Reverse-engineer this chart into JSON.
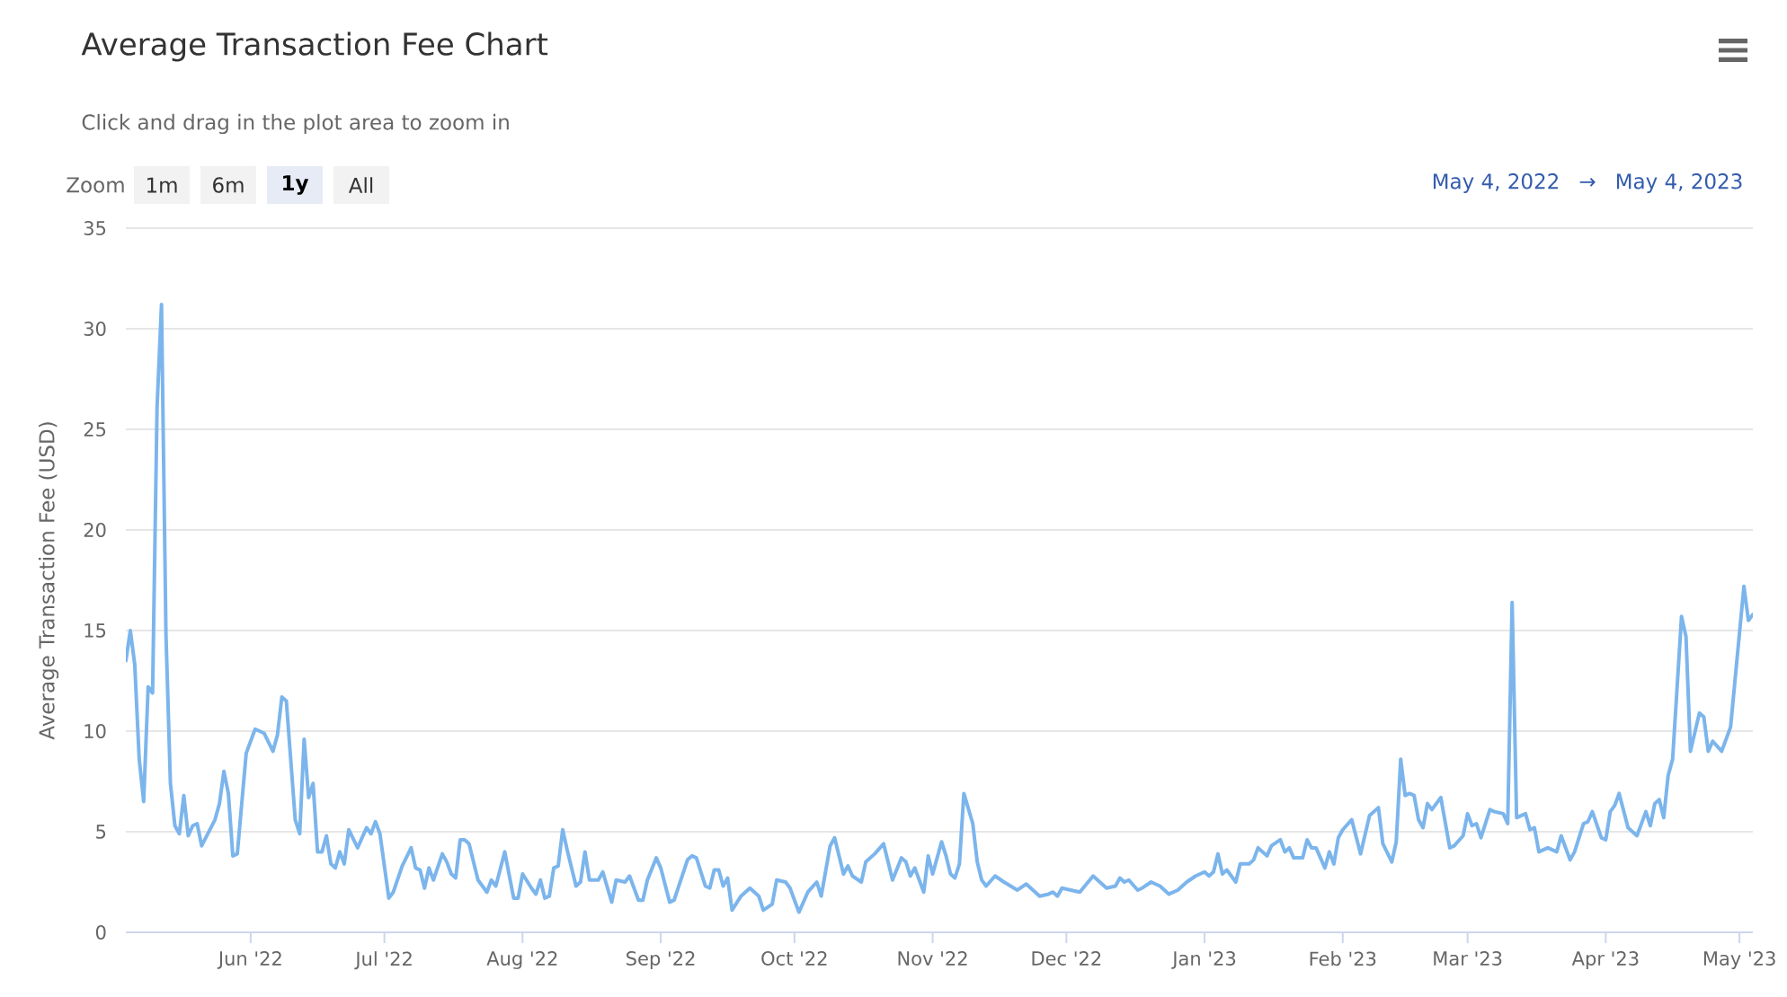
{
  "chart_data": {
    "type": "line",
    "title": "Average Transaction Fee Chart",
    "ylabel": "Average Transaction Fee (USD)",
    "annotations": [
      "Click and drag in the plot area to zoom in",
      "Zoom",
      "1m",
      "6m",
      "1y",
      "All",
      "May 4, 2022",
      "→",
      "May 4, 2023"
    ],
    "x": [
      "2022-05-04",
      "2022-05-05",
      "2022-05-06",
      "2022-05-07",
      "2022-05-08",
      "2022-05-09",
      "2022-05-10",
      "2022-05-11",
      "2022-05-12",
      "2022-05-13",
      "2022-05-14",
      "2022-05-15",
      "2022-05-16",
      "2022-05-17",
      "2022-05-18",
      "2022-05-19",
      "2022-05-20",
      "2022-05-21",
      "2022-05-24",
      "2022-05-25",
      "2022-05-26",
      "2022-05-27",
      "2022-05-28",
      "2022-05-29",
      "2022-05-31",
      "2022-06-02",
      "2022-06-04",
      "2022-06-06",
      "2022-06-07",
      "2022-06-08",
      "2022-06-09",
      "2022-06-11",
      "2022-06-12",
      "2022-06-13",
      "2022-06-14",
      "2022-06-15",
      "2022-06-16",
      "2022-06-17",
      "2022-06-18",
      "2022-06-19",
      "2022-06-20",
      "2022-06-21",
      "2022-06-22",
      "2022-06-23",
      "2022-06-25",
      "2022-06-27",
      "2022-06-28",
      "2022-06-29",
      "2022-06-30",
      "2022-07-02",
      "2022-07-03",
      "2022-07-05",
      "2022-07-07",
      "2022-07-08",
      "2022-07-09",
      "2022-07-10",
      "2022-07-11",
      "2022-07-12",
      "2022-07-14",
      "2022-07-15",
      "2022-07-16",
      "2022-07-17",
      "2022-07-18",
      "2022-07-19",
      "2022-07-20",
      "2022-07-22",
      "2022-07-24",
      "2022-07-25",
      "2022-07-26",
      "2022-07-28",
      "2022-07-30",
      "2022-07-31",
      "2022-08-01",
      "2022-08-03",
      "2022-08-04",
      "2022-08-05",
      "2022-08-06",
      "2022-08-07",
      "2022-08-08",
      "2022-08-09",
      "2022-08-10",
      "2022-08-11",
      "2022-08-13",
      "2022-08-14",
      "2022-08-15",
      "2022-08-16",
      "2022-08-18",
      "2022-08-19",
      "2022-08-21",
      "2022-08-22",
      "2022-08-24",
      "2022-08-25",
      "2022-08-27",
      "2022-08-28",
      "2022-08-29",
      "2022-08-31",
      "2022-09-01",
      "2022-09-03",
      "2022-09-04",
      "2022-09-07",
      "2022-09-08",
      "2022-09-09",
      "2022-09-11",
      "2022-09-12",
      "2022-09-13",
      "2022-09-14",
      "2022-09-15",
      "2022-09-16",
      "2022-09-17",
      "2022-09-19",
      "2022-09-21",
      "2022-09-23",
      "2022-09-24",
      "2022-09-26",
      "2022-09-27",
      "2022-09-29",
      "2022-09-30",
      "2022-10-02",
      "2022-10-04",
      "2022-10-06",
      "2022-10-07",
      "2022-10-09",
      "2022-10-10",
      "2022-10-12",
      "2022-10-13",
      "2022-10-14",
      "2022-10-16",
      "2022-10-17",
      "2022-10-19",
      "2022-10-21",
      "2022-10-23",
      "2022-10-25",
      "2022-10-26",
      "2022-10-27",
      "2022-10-28",
      "2022-10-30",
      "2022-10-31",
      "2022-11-01",
      "2022-11-03",
      "2022-11-04",
      "2022-11-05",
      "2022-11-06",
      "2022-11-07",
      "2022-11-08",
      "2022-11-10",
      "2022-11-11",
      "2022-11-12",
      "2022-11-13",
      "2022-11-15",
      "2022-11-17",
      "2022-11-20",
      "2022-11-22",
      "2022-11-25",
      "2022-11-27",
      "2022-11-28",
      "2022-11-29",
      "2022-11-30",
      "2022-12-02",
      "2022-12-04",
      "2022-12-07",
      "2022-12-08",
      "2022-12-10",
      "2022-12-12",
      "2022-12-13",
      "2022-12-14",
      "2022-12-15",
      "2022-12-17",
      "2022-12-18",
      "2022-12-20",
      "2022-12-22",
      "2022-12-24",
      "2022-12-26",
      "2022-12-28",
      "2022-12-30",
      "2023-01-01",
      "2023-01-02",
      "2023-01-03",
      "2023-01-04",
      "2023-01-05",
      "2023-01-06",
      "2023-01-08",
      "2023-01-09",
      "2023-01-11",
      "2023-01-12",
      "2023-01-13",
      "2023-01-15",
      "2023-01-16",
      "2023-01-18",
      "2023-01-19",
      "2023-01-20",
      "2023-01-21",
      "2023-01-23",
      "2023-01-24",
      "2023-01-25",
      "2023-01-26",
      "2023-01-28",
      "2023-01-29",
      "2023-01-30",
      "2023-01-31",
      "2023-02-01",
      "2023-02-03",
      "2023-02-05",
      "2023-02-07",
      "2023-02-09",
      "2023-02-10",
      "2023-02-12",
      "2023-02-13",
      "2023-02-14",
      "2023-02-15",
      "2023-02-16",
      "2023-02-17",
      "2023-02-18",
      "2023-02-19",
      "2023-02-20",
      "2023-02-21",
      "2023-02-23",
      "2023-02-25",
      "2023-02-26",
      "2023-02-28",
      "2023-03-01",
      "2023-03-02",
      "2023-03-03",
      "2023-03-04",
      "2023-03-06",
      "2023-03-07",
      "2023-03-09",
      "2023-03-10",
      "2023-03-11",
      "2023-03-12",
      "2023-03-14",
      "2023-03-15",
      "2023-03-16",
      "2023-03-17",
      "2023-03-19",
      "2023-03-21",
      "2023-03-22",
      "2023-03-24",
      "2023-03-25",
      "2023-03-27",
      "2023-03-28",
      "2023-03-29",
      "2023-03-31",
      "2023-04-01",
      "2023-04-02",
      "2023-04-03",
      "2023-04-04",
      "2023-04-06",
      "2023-04-08",
      "2023-04-10",
      "2023-04-11",
      "2023-04-12",
      "2023-04-13",
      "2023-04-14",
      "2023-04-15",
      "2023-04-16",
      "2023-04-18",
      "2023-04-19",
      "2023-04-20",
      "2023-04-22",
      "2023-04-23",
      "2023-04-24",
      "2023-04-25",
      "2023-04-27",
      "2023-04-29",
      "2023-05-02",
      "2023-05-03",
      "2023-05-04"
    ],
    "values": [
      13.5,
      15.0,
      13.3,
      8.6,
      6.5,
      12.2,
      11.9,
      26.1,
      31.2,
      14.8,
      7.4,
      5.3,
      4.9,
      6.8,
      4.8,
      5.3,
      5.4,
      4.3,
      5.6,
      6.4,
      8.0,
      6.9,
      3.8,
      3.9,
      8.9,
      10.1,
      9.9,
      9.0,
      9.8,
      11.7,
      11.5,
      5.6,
      4.9,
      9.6,
      6.7,
      7.4,
      4.0,
      4.0,
      4.8,
      3.4,
      3.2,
      4.0,
      3.4,
      5.1,
      4.2,
      5.2,
      4.9,
      5.5,
      4.9,
      1.7,
      2.0,
      3.3,
      4.2,
      3.2,
      3.1,
      2.2,
      3.2,
      2.6,
      3.9,
      3.5,
      2.9,
      2.7,
      4.6,
      4.6,
      4.4,
      2.6,
      2.0,
      2.6,
      2.3,
      4.0,
      1.7,
      1.7,
      2.9,
      2.2,
      1.9,
      2.6,
      1.7,
      1.8,
      3.2,
      3.3,
      5.1,
      4.1,
      2.3,
      2.5,
      4.0,
      2.6,
      2.6,
      3.0,
      1.5,
      2.6,
      2.5,
      2.8,
      1.6,
      1.6,
      2.6,
      3.7,
      3.2,
      1.5,
      1.6,
      3.6,
      3.8,
      3.7,
      2.3,
      2.2,
      3.1,
      3.1,
      2.3,
      2.7,
      1.1,
      1.8,
      2.2,
      1.8,
      1.1,
      1.4,
      2.6,
      2.5,
      2.2,
      1.0,
      2.0,
      2.5,
      1.8,
      4.3,
      4.7,
      2.9,
      3.3,
      2.8,
      2.5,
      3.5,
      3.9,
      4.4,
      2.6,
      3.7,
      3.5,
      2.8,
      3.2,
      2.0,
      3.8,
      2.9,
      4.5,
      3.8,
      2.9,
      2.7,
      3.4,
      6.9,
      5.4,
      3.5,
      2.6,
      2.3,
      2.8,
      2.5,
      2.1,
      2.4,
      1.8,
      1.9,
      2.0,
      1.8,
      2.2,
      2.1,
      2.0,
      2.8,
      2.6,
      2.2,
      2.3,
      2.7,
      2.5,
      2.6,
      2.1,
      2.2,
      2.5,
      2.3,
      1.9,
      2.1,
      2.5,
      2.8,
      3.0,
      2.8,
      3.0,
      3.9,
      2.9,
      3.1,
      2.5,
      3.4,
      3.4,
      3.6,
      4.2,
      3.8,
      4.3,
      4.6,
      4.0,
      4.2,
      3.7,
      3.7,
      4.6,
      4.2,
      4.2,
      3.2,
      4.0,
      3.4,
      4.7,
      5.1,
      5.6,
      3.9,
      5.8,
      6.2,
      4.4,
      3.5,
      4.5,
      8.6,
      6.8,
      6.9,
      6.8,
      5.6,
      5.2,
      6.4,
      6.1,
      6.7,
      4.2,
      4.3,
      4.8,
      5.9,
      5.3,
      5.4,
      4.7,
      6.1,
      6.0,
      5.9,
      5.4,
      16.4,
      5.7,
      5.9,
      5.1,
      5.2,
      4.0,
      4.2,
      4.0,
      4.8,
      3.6,
      4.0,
      5.4,
      5.5,
      6.0,
      4.7,
      4.6,
      6.0,
      6.3,
      6.9,
      5.2,
      4.8,
      6.0,
      5.3,
      6.4,
      6.6,
      5.7,
      7.8,
      8.6,
      15.7,
      14.7,
      9.0,
      10.9,
      10.7,
      9.0,
      9.5,
      9.0,
      10.2,
      17.2,
      15.5,
      15.8
    ],
    "color": "#7cb5ec",
    "marker": "none",
    "line_style": "solid",
    "xlim": [
      "2022-05-04",
      "2023-05-04"
    ],
    "xticks": [
      {
        "value": "2022-06-01",
        "label": "Jun '22"
      },
      {
        "value": "2022-07-01",
        "label": "Jul '22"
      },
      {
        "value": "2022-08-01",
        "label": "Aug '22"
      },
      {
        "value": "2022-09-01",
        "label": "Sep '22"
      },
      {
        "value": "2022-10-01",
        "label": "Oct '22"
      },
      {
        "value": "2022-11-01",
        "label": "Nov '22"
      },
      {
        "value": "2022-12-01",
        "label": "Dec '22"
      },
      {
        "value": "2023-01-01",
        "label": "Jan '23"
      },
      {
        "value": "2023-02-01",
        "label": "Feb '23"
      },
      {
        "value": "2023-03-01",
        "label": "Mar '23"
      },
      {
        "value": "2023-04-01",
        "label": "Apr '23"
      },
      {
        "value": "2023-05-01",
        "label": "May '23"
      }
    ],
    "ylim": [
      0,
      35
    ],
    "yticks": [
      0,
      5,
      10,
      15,
      20,
      25,
      30,
      35
    ],
    "grid": "y"
  }
}
